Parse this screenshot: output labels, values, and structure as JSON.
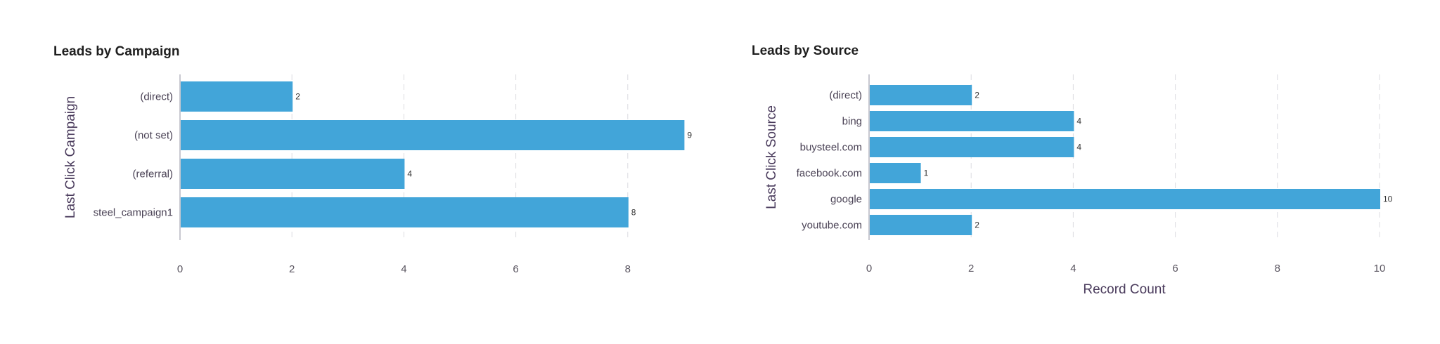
{
  "chart_data": [
    {
      "type": "bar",
      "orientation": "horizontal",
      "title": "Leads by Campaign",
      "ylabel": "Last Click Campaign",
      "xlabel": "",
      "categories": [
        "(direct)",
        "(not set)",
        "(referral)",
        "steel_campaign1"
      ],
      "values": [
        2,
        9,
        4,
        8
      ],
      "xticks": [
        0,
        2,
        4,
        6,
        8
      ],
      "xlim": [
        0,
        9
      ],
      "grid": true,
      "bar_color": "#42a5d9"
    },
    {
      "type": "bar",
      "orientation": "horizontal",
      "title": "Leads by Source",
      "ylabel": "Last Click Source",
      "xlabel": "Record Count",
      "categories": [
        "(direct)",
        "bing",
        "buysteel.com",
        "facebook.com",
        "google",
        "youtube.com"
      ],
      "values": [
        2,
        4,
        4,
        1,
        10,
        2
      ],
      "xticks": [
        0,
        2,
        4,
        6,
        8,
        10
      ],
      "xlim": [
        0,
        10
      ],
      "grid": true,
      "bar_color": "#42a5d9"
    }
  ]
}
